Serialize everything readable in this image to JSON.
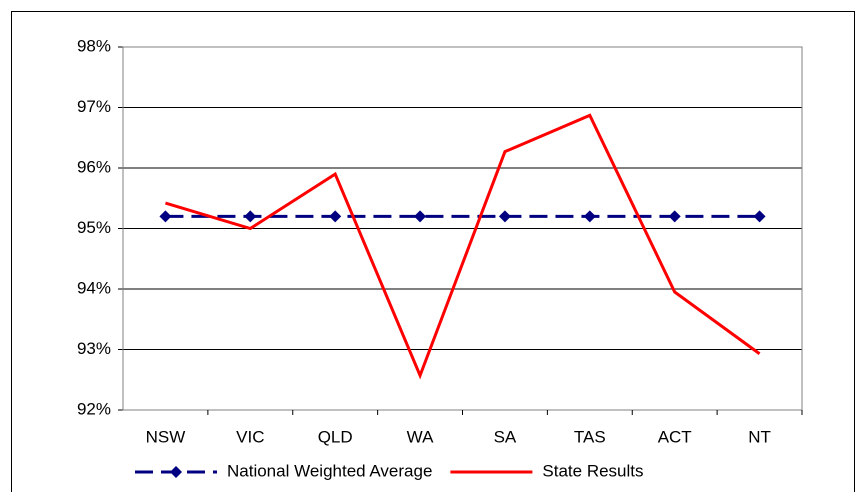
{
  "chart_data": {
    "type": "line",
    "categories": [
      "NSW",
      "VIC",
      "QLD",
      "WA",
      "SA",
      "TAS",
      "ACT",
      "NT"
    ],
    "series": [
      {
        "name": "National Weighted Average",
        "color": "#000080",
        "dashed": true,
        "marker": "diamond",
        "values": [
          95.2,
          95.2,
          95.2,
          95.2,
          95.2,
          95.2,
          95.2,
          95.2
        ]
      },
      {
        "name": "State Results",
        "color": "#ff0000",
        "dashed": false,
        "marker": "none",
        "values": [
          95.42,
          95.0,
          95.9,
          92.57,
          96.27,
          96.87,
          93.95,
          92.93
        ]
      }
    ],
    "ylim": [
      92,
      98
    ],
    "yticks": [
      {
        "value": 92,
        "label": "92%"
      },
      {
        "value": 93,
        "label": "93%"
      },
      {
        "value": 94,
        "label": "94%"
      },
      {
        "value": 95,
        "label": "95%"
      },
      {
        "value": 96,
        "label": "96%"
      },
      {
        "value": 97,
        "label": "97%"
      },
      {
        "value": 98,
        "label": "98%"
      }
    ],
    "grid": true,
    "legend": "bottom"
  }
}
